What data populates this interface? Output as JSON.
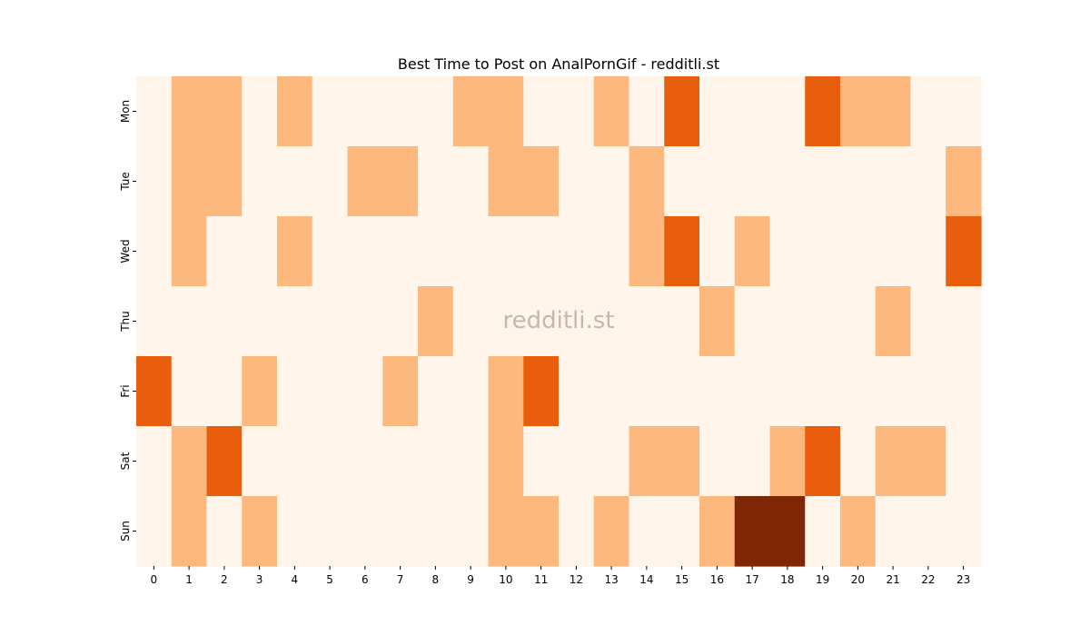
{
  "chart_data": {
    "type": "heatmap",
    "title": "Best Time to Post on AnalPornGif - redditli.st",
    "watermark": "redditli.st",
    "x_categories": [
      "0",
      "1",
      "2",
      "3",
      "4",
      "5",
      "6",
      "7",
      "8",
      "9",
      "10",
      "11",
      "12",
      "13",
      "14",
      "15",
      "16",
      "17",
      "18",
      "19",
      "20",
      "21",
      "22",
      "23"
    ],
    "y_categories": [
      "Mon",
      "Tue",
      "Wed",
      "Thu",
      "Fri",
      "Sat",
      "Sun"
    ],
    "colormap": "Oranges",
    "value_range": [
      0,
      3
    ],
    "level_colors": [
      "#fff5eb",
      "#fdb97d",
      "#e95e0d",
      "#7f2704"
    ],
    "values": [
      [
        0,
        1,
        1,
        0,
        1,
        0,
        0,
        0,
        0,
        1,
        1,
        0,
        0,
        1,
        0,
        2,
        0,
        0,
        0,
        2,
        1,
        1,
        0,
        0
      ],
      [
        0,
        1,
        1,
        0,
        0,
        0,
        1,
        1,
        0,
        0,
        1,
        1,
        0,
        0,
        1,
        0,
        0,
        0,
        0,
        0,
        0,
        0,
        0,
        1
      ],
      [
        0,
        1,
        0,
        0,
        1,
        0,
        0,
        0,
        0,
        0,
        0,
        0,
        0,
        0,
        1,
        2,
        0,
        1,
        0,
        0,
        0,
        0,
        0,
        2
      ],
      [
        0,
        0,
        0,
        0,
        0,
        0,
        0,
        0,
        1,
        0,
        0,
        0,
        0,
        0,
        0,
        0,
        1,
        0,
        0,
        0,
        0,
        1,
        0,
        0
      ],
      [
        2,
        0,
        0,
        1,
        0,
        0,
        0,
        1,
        0,
        0,
        1,
        2,
        0,
        0,
        0,
        0,
        0,
        0,
        0,
        0,
        0,
        0,
        0,
        0
      ],
      [
        0,
        1,
        2,
        0,
        0,
        0,
        0,
        0,
        0,
        0,
        1,
        0,
        0,
        0,
        1,
        1,
        0,
        0,
        1,
        2,
        0,
        1,
        1,
        0
      ],
      [
        0,
        1,
        0,
        1,
        0,
        0,
        0,
        0,
        0,
        0,
        1,
        1,
        0,
        1,
        0,
        0,
        1,
        3,
        3,
        0,
        1,
        0,
        0,
        0
      ]
    ],
    "grid": false,
    "legend": "none"
  }
}
